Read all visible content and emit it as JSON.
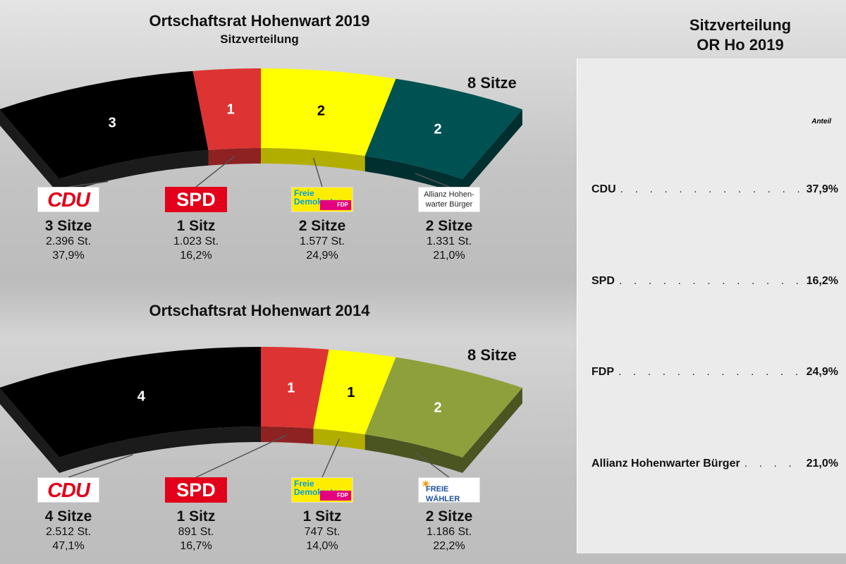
{
  "chart_data": [
    {
      "type": "parliament-arc",
      "title": "Ortschaftsrat Hohenwart 2019",
      "subtitle": "Sitzverteilung",
      "total_label": "8 Sitze",
      "parties": [
        {
          "name": "CDU",
          "seats": 3,
          "seat_label": "3",
          "sitze": "3 Sitze",
          "votes": "2.396 St.",
          "pct": "37,9%",
          "color": "#000000",
          "dark": "#1b1b1b"
        },
        {
          "name": "SPD",
          "seats": 1,
          "seat_label": "1",
          "sitze": "1 Sitz",
          "votes": "1.023 St.",
          "pct": "16,2%",
          "color": "#dd3333",
          "dark": "#8e2222"
        },
        {
          "name": "FDP",
          "seats": 2,
          "seat_label": "2",
          "sitze": "2 Sitze",
          "votes": "1.577 St.",
          "pct": "24,9%",
          "color": "#ffff00",
          "dark": "#b2ae00"
        },
        {
          "name": "Allianz Hohenwarter Bürger",
          "seats": 2,
          "seat_label": "2",
          "sitze": "2 Sitze",
          "votes": "1.331 St.",
          "pct": "21,0%",
          "color": "#005252",
          "dark": "#002f2f"
        }
      ]
    },
    {
      "type": "parliament-arc",
      "title": "Ortschaftsrat Hohenwart 2014",
      "total_label": "8 Sitze",
      "parties": [
        {
          "name": "CDU",
          "seats": 4,
          "seat_label": "4",
          "sitze": "4 Sitze",
          "votes": "2.512 St.",
          "pct": "47,1%",
          "color": "#000000",
          "dark": "#1b1b1b"
        },
        {
          "name": "SPD",
          "seats": 1,
          "seat_label": "1",
          "sitze": "1 Sitz",
          "votes": "891 St.",
          "pct": "16,7%",
          "color": "#dd3333",
          "dark": "#8e2222"
        },
        {
          "name": "FDP",
          "seats": 1,
          "seat_label": "1",
          "sitze": "1 Sitz",
          "votes": "747 St.",
          "pct": "14,0%",
          "color": "#ffff00",
          "dark": "#b2ae00"
        },
        {
          "name": "Freie Wähler",
          "seats": 2,
          "seat_label": "2",
          "sitze": "2 Sitze",
          "votes": "1.186 St.",
          "pct": "22,2%",
          "color": "#8ea03c",
          "dark": "#4b5522"
        }
      ]
    }
  ],
  "logos": {
    "cdu": "CDU",
    "spd": "SPD",
    "fdp_1": "Freie",
    "fdp_2": "Demokraten",
    "fdp_3": "FDP",
    "ahb_1": "Allianz Hohen-",
    "ahb_2": "warter Bürger",
    "fw": "FREIE WÄHLER",
    "fw_sun": "☀"
  },
  "panel": {
    "title_1": "Sitzverteilung",
    "title_2": "OR Ho 2019",
    "col": "Anteil",
    "rows": [
      {
        "name": "CDU",
        "value": "37,9%"
      },
      {
        "name": "SPD",
        "value": "16,2%"
      },
      {
        "name": "FDP",
        "value": "24,9%"
      },
      {
        "name": "Allianz Hohenwarter Bürger",
        "value": "21,0%"
      }
    ],
    "dots": ". . . . . . . . . . . . . . . . . . . . . . . . . . . . . . . . . . ."
  }
}
